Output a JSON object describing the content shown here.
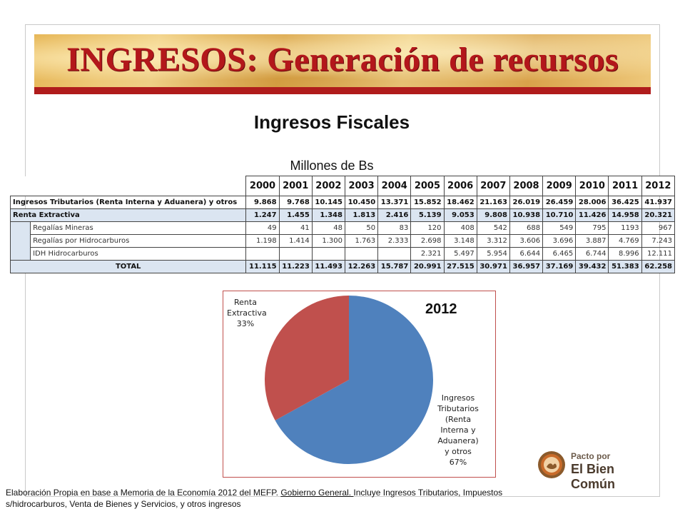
{
  "header": {
    "title": "INGRESOS: Generación de recursos",
    "subtitle": "Ingresos Fiscales",
    "units": "Millones de Bs"
  },
  "table": {
    "years": [
      "2000",
      "2001",
      "2002",
      "2003",
      "2004",
      "2005",
      "2006",
      "2007",
      "2008",
      "2009",
      "2010",
      "2011",
      "2012"
    ],
    "rows": {
      "tributarios": {
        "label": "Ingresos Tributarios (Renta Interna y Aduanera) y otros",
        "values": [
          "9.868",
          "9.768",
          "10.145",
          "10.450",
          "13.371",
          "15.852",
          "18.462",
          "21.163",
          "26.019",
          "26.459",
          "28.006",
          "36.425",
          "41.937"
        ]
      },
      "extractiva": {
        "label": "Renta Extractiva",
        "values": [
          "1.247",
          "1.455",
          "1.348",
          "1.813",
          "2.416",
          "5.139",
          "9.053",
          "9.808",
          "10.938",
          "10.710",
          "11.426",
          "14.958",
          "20.321"
        ]
      },
      "mineras": {
        "label": "Regalías Mineras",
        "values": [
          "49",
          "41",
          "48",
          "50",
          "83",
          "120",
          "408",
          "542",
          "688",
          "549",
          "795",
          "1193",
          "967"
        ]
      },
      "hidrocarburos": {
        "label": "Regalías por Hidrocarburos",
        "values": [
          "1.198",
          "1.414",
          "1.300",
          "1.763",
          "2.333",
          "2.698",
          "3.148",
          "3.312",
          "3.606",
          "3.696",
          "3.887",
          "4.769",
          "7.243"
        ]
      },
      "idh": {
        "label": "IDH Hidrocarburos",
        "values": [
          "",
          "",
          "",
          "",
          "",
          "2.321",
          "5.497",
          "5.954",
          "6.644",
          "6.465",
          "6.744",
          "8.996",
          "12.111"
        ]
      },
      "total": {
        "label": "TOTAL",
        "values": [
          "11.115",
          "11.223",
          "11.493",
          "12.263",
          "15.787",
          "20.991",
          "27.515",
          "30.971",
          "36.957",
          "37.169",
          "39.432",
          "51.383",
          "62.258"
        ]
      }
    }
  },
  "chart_data": {
    "type": "pie",
    "title": "2012",
    "slices": [
      {
        "label_lines": [
          "Ingresos",
          "Tributarios",
          "(Renta",
          "Interna y",
          "Aduanera)",
          "y otros",
          "67%"
        ],
        "value": 67,
        "color": "#4f81bd"
      },
      {
        "label_lines": [
          "Renta",
          "Extractiva",
          "33%"
        ],
        "value": 33,
        "color": "#c0504d"
      }
    ]
  },
  "logo": {
    "line1": "Pacto por",
    "line2": "El Bien Común"
  },
  "footer": {
    "text_before": "Elaboración Propia en base a Memoria de la Economía 2012  del MEFP. ",
    "underlined": "Gobierno General. ",
    "text_after": " Incluye Ingresos Tributarios, Impuestos s/hidrocarburos, Venta de Bienes y Servicios, y otros ingresos"
  }
}
